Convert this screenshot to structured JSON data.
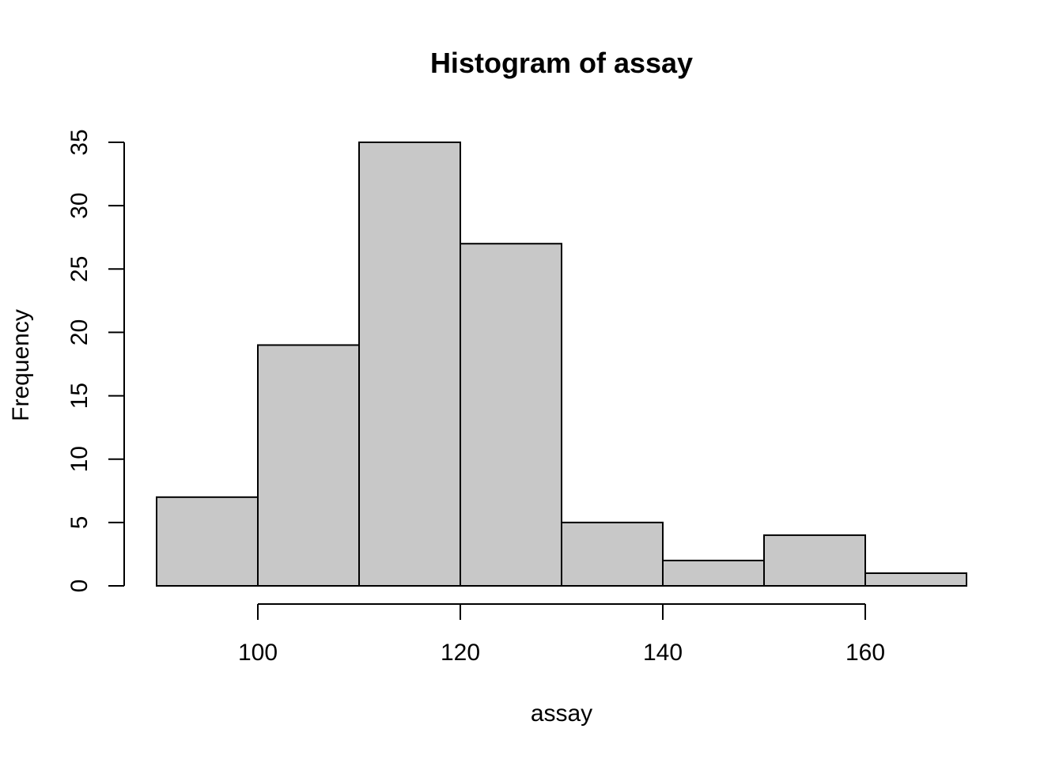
{
  "chart_data": {
    "type": "bar",
    "title": "Histogram of assay",
    "xlabel": "assay",
    "ylabel": "Frequency",
    "bins": [
      {
        "start": 90,
        "end": 100,
        "count": 7
      },
      {
        "start": 100,
        "end": 110,
        "count": 19
      },
      {
        "start": 110,
        "end": 120,
        "count": 35
      },
      {
        "start": 120,
        "end": 130,
        "count": 27
      },
      {
        "start": 130,
        "end": 140,
        "count": 5
      },
      {
        "start": 140,
        "end": 150,
        "count": 2
      },
      {
        "start": 150,
        "end": 160,
        "count": 4
      },
      {
        "start": 160,
        "end": 170,
        "count": 1
      }
    ],
    "xlim": [
      90,
      170
    ],
    "ylim": [
      0,
      35
    ],
    "x_ticks": [
      100,
      120,
      140,
      160
    ],
    "y_ticks": [
      0,
      5,
      10,
      15,
      20,
      25,
      30,
      35
    ],
    "bar_color": "#c8c8c8",
    "edge_color": "#000000",
    "grid": false
  }
}
